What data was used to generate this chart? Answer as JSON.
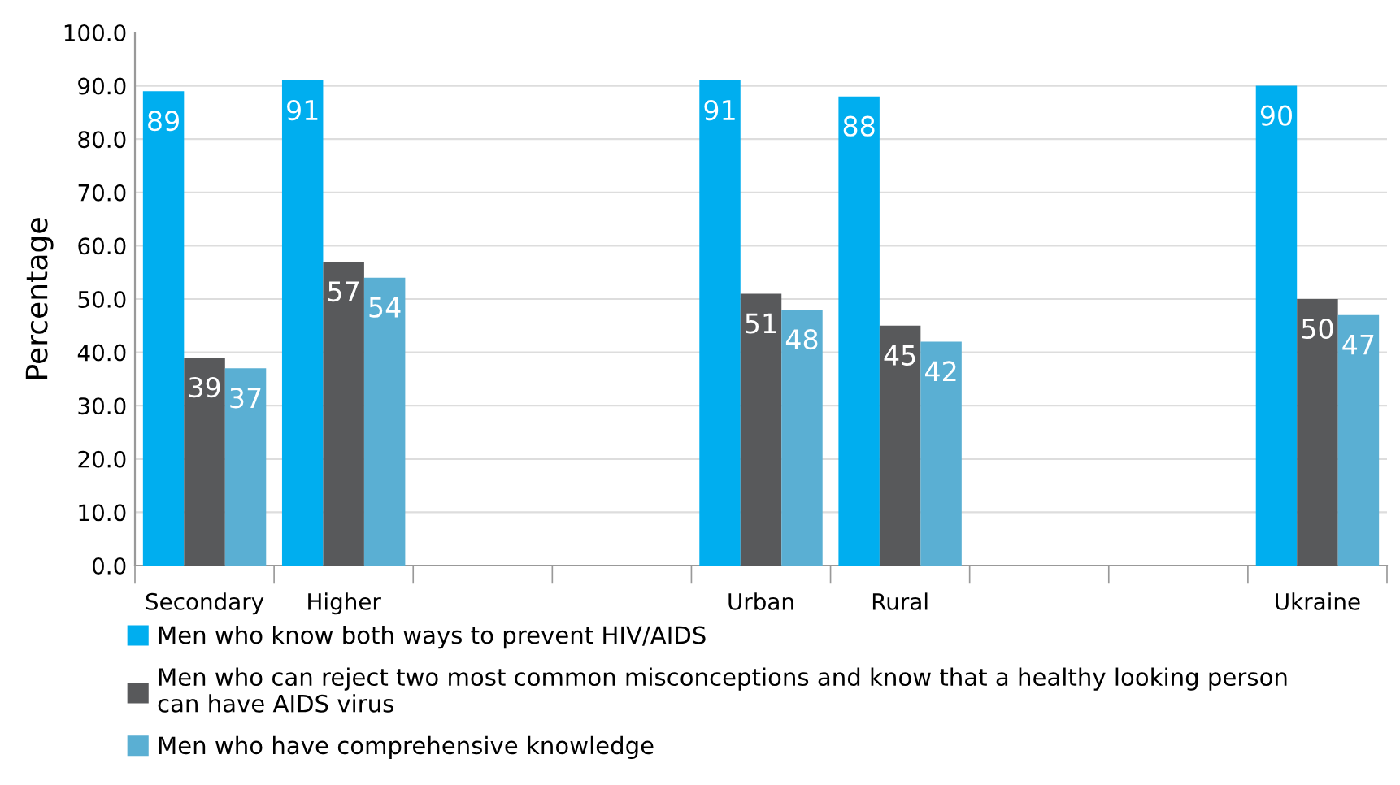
{
  "chart_data": {
    "type": "bar",
    "ylabel": "Percentage",
    "categories": [
      "Secondary",
      "Higher",
      null,
      null,
      "Urban",
      "Rural",
      null,
      null,
      "Ukraine"
    ],
    "series": [
      {
        "name": "Men who know both ways to prevent HIV/AIDS",
        "color": "#00aeef",
        "values": [
          89,
          91,
          null,
          null,
          91,
          88,
          null,
          null,
          90
        ]
      },
      {
        "name": "Men who can reject two most common misconceptions and know that a healthy looking person\ncan have AIDS virus",
        "color": "#58595b",
        "values": [
          39,
          57,
          null,
          null,
          51,
          45,
          null,
          null,
          50
        ]
      },
      {
        "name": "Men who have comprehensive knowledge",
        "color": "#5aafd3",
        "values": [
          37,
          54,
          null,
          null,
          48,
          42,
          null,
          null,
          47
        ]
      }
    ],
    "ylim": [
      0,
      100
    ],
    "yticks": [
      {
        "value": 0,
        "label": "0.0"
      },
      {
        "value": 10,
        "label": "10.0"
      },
      {
        "value": 20,
        "label": "20.0"
      },
      {
        "value": 30,
        "label": "30.0"
      },
      {
        "value": 40,
        "label": "40.0"
      },
      {
        "value": 50,
        "label": "50.0"
      },
      {
        "value": 60,
        "label": "60.0"
      },
      {
        "value": 70,
        "label": "70.0"
      },
      {
        "value": 80,
        "label": "80.0"
      },
      {
        "value": 90,
        "label": "90.0"
      },
      {
        "value": 100,
        "label": "100.0"
      }
    ],
    "grid": "y",
    "legend": "bottom",
    "data_labels": true
  }
}
